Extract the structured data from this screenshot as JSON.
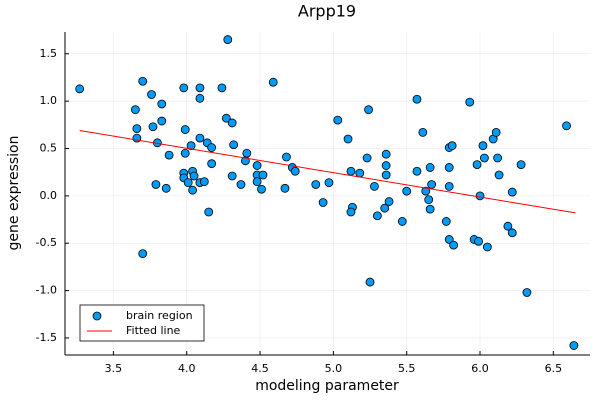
{
  "chart_data": {
    "type": "scatter",
    "title": "Arpp19",
    "xlabel": "modeling parameter",
    "ylabel": "gene expression",
    "xlim": [
      3.17,
      6.75
    ],
    "ylim": [
      -1.68,
      1.73
    ],
    "xticks": [
      3.5,
      {
        "value": 4,
        "label": "4.0"
      },
      4.5,
      {
        "value": 5,
        "label": "5.0"
      },
      5.5,
      {
        "value": 6,
        "label": "6.0"
      },
      6.5
    ],
    "yticks": [
      -1.5,
      {
        "value": -1,
        "label": "-1.0"
      },
      -0.5,
      {
        "value": 0,
        "label": "0.0"
      },
      0.5,
      {
        "value": 1,
        "label": "1.0"
      },
      1.5
    ],
    "grid": true,
    "legend": "bottom left",
    "series": [
      {
        "name": "brain region",
        "kind": "scatter",
        "color": "#009af9",
        "x": [
          3.27,
          3.7,
          3.65,
          3.76,
          3.83,
          3.66,
          3.66,
          3.77,
          3.83,
          3.8,
          3.86,
          3.79,
          3.88,
          3.7,
          3.98,
          4.09,
          4.09,
          3.99,
          4.03,
          3.99,
          3.98,
          3.98,
          4.01,
          4.04,
          4.05,
          4.04,
          4.09,
          4.12,
          4.09,
          4.14,
          4.17,
          4.17,
          4.15,
          4.28,
          4.24,
          4.27,
          4.31,
          4.32,
          4.41,
          4.4,
          4.31,
          4.37,
          4.48,
          4.48,
          4.52,
          4.48,
          4.51,
          4.59,
          4.68,
          4.72,
          4.74,
          4.67,
          4.88,
          4.97,
          4.93,
          5.03,
          5.1,
          5.12,
          5.18,
          5.13,
          5.12,
          5.23,
          5.24,
          5.28,
          5.3,
          5.36,
          5.36,
          5.36,
          5.35,
          5.38,
          5.25,
          5.47,
          5.5,
          5.57,
          5.57,
          5.61,
          5.63,
          5.65,
          5.66,
          5.67,
          5.66,
          5.79,
          5.81,
          5.79,
          5.79,
          5.77,
          5.79,
          5.82,
          5.93,
          5.96,
          5.98,
          6.02,
          6.03,
          6.0,
          5.99,
          6.05,
          6.09,
          6.11,
          6.12,
          6.13,
          6.19,
          6.22,
          6.22,
          6.28,
          6.32,
          6.59,
          6.64
        ],
        "values": [
          1.13,
          1.21,
          0.91,
          1.07,
          0.97,
          0.71,
          0.61,
          0.73,
          0.79,
          0.56,
          0.08,
          0.12,
          0.43,
          -0.61,
          1.14,
          1.03,
          1.14,
          0.7,
          0.53,
          0.45,
          0.24,
          0.19,
          0.14,
          0.26,
          0.21,
          0.06,
          0.14,
          0.15,
          0.61,
          0.56,
          0.51,
          0.34,
          -0.17,
          1.65,
          1.14,
          0.82,
          0.77,
          0.54,
          0.45,
          0.37,
          0.21,
          0.12,
          0.32,
          0.22,
          0.22,
          0.15,
          0.07,
          1.2,
          0.41,
          0.3,
          0.26,
          0.08,
          0.12,
          0.14,
          -0.07,
          0.8,
          0.6,
          0.26,
          0.24,
          -0.12,
          -0.17,
          0.4,
          0.91,
          0.1,
          -0.21,
          0.44,
          0.32,
          0.22,
          -0.13,
          -0.06,
          -0.91,
          -0.27,
          0.05,
          1.02,
          0.26,
          0.67,
          0.05,
          -0.04,
          0.3,
          0.12,
          -0.14,
          0.51,
          0.53,
          0.3,
          0.1,
          -0.27,
          -0.46,
          -0.52,
          0.99,
          -0.46,
          0.33,
          0.53,
          0.4,
          0.0,
          -0.48,
          -0.54,
          0.6,
          0.67,
          0.4,
          0.22,
          -0.32,
          0.04,
          -0.39,
          0.33,
          -1.02,
          0.74,
          -1.58
        ]
      },
      {
        "name": "Fitted line",
        "kind": "line",
        "color": "#ff0000",
        "x": [
          3.27,
          6.65
        ],
        "values": [
          0.69,
          -0.18
        ]
      }
    ]
  }
}
